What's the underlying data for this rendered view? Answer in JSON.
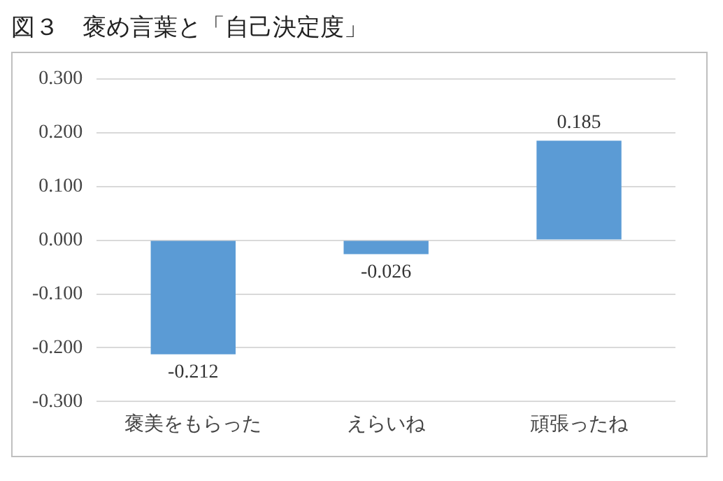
{
  "chart_data": {
    "type": "bar",
    "title": "図３　褒め言葉と「自己決定度」",
    "categories": [
      "褒美をもらった",
      "えらいね",
      "頑張ったね"
    ],
    "values": [
      -0.212,
      -0.026,
      0.185
    ],
    "color": "#5b9bd5",
    "ylim": [
      -0.3,
      0.3
    ],
    "yticks": [
      {
        "value": -0.3,
        "label": "-0.300"
      },
      {
        "value": -0.2,
        "label": "-0.200"
      },
      {
        "value": -0.1,
        "label": "-0.100"
      },
      {
        "value": 0,
        "label": "0.000"
      },
      {
        "value": 0.1,
        "label": "0.100"
      },
      {
        "value": 0.2,
        "label": "0.200"
      },
      {
        "value": 0.3,
        "label": "0.300"
      }
    ],
    "grid": "y",
    "data_labels": true
  }
}
